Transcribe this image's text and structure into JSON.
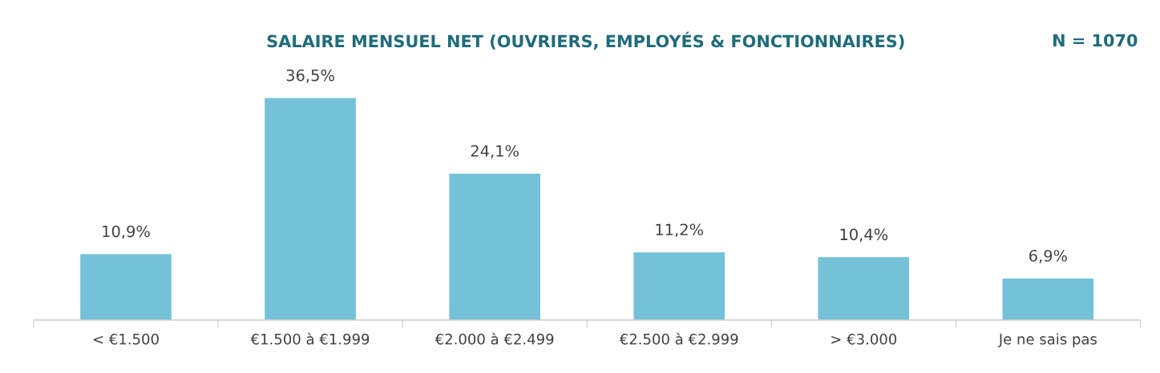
{
  "chart_data": {
    "type": "bar",
    "title": "SALAIRE MENSUEL NET (OUVRIERS, EMPLOYÉS & FONCTIONNAIRES)",
    "annotations": [
      "N = 1070"
    ],
    "categories": [
      "< €1.500",
      "€1.500 à €1.999",
      "€2.000 à €2.499",
      "€2.500 à €2.999",
      "> €3.000",
      "Je ne sais pas"
    ],
    "values": [
      10.9,
      36.5,
      24.1,
      11.2,
      10.4,
      6.9
    ],
    "value_labels": [
      "10,9%",
      "36,5%",
      "24,1%",
      "11,2%",
      "10,4%",
      "6,9%"
    ],
    "color": "#75c1d9",
    "grid": false,
    "legend": false
  }
}
